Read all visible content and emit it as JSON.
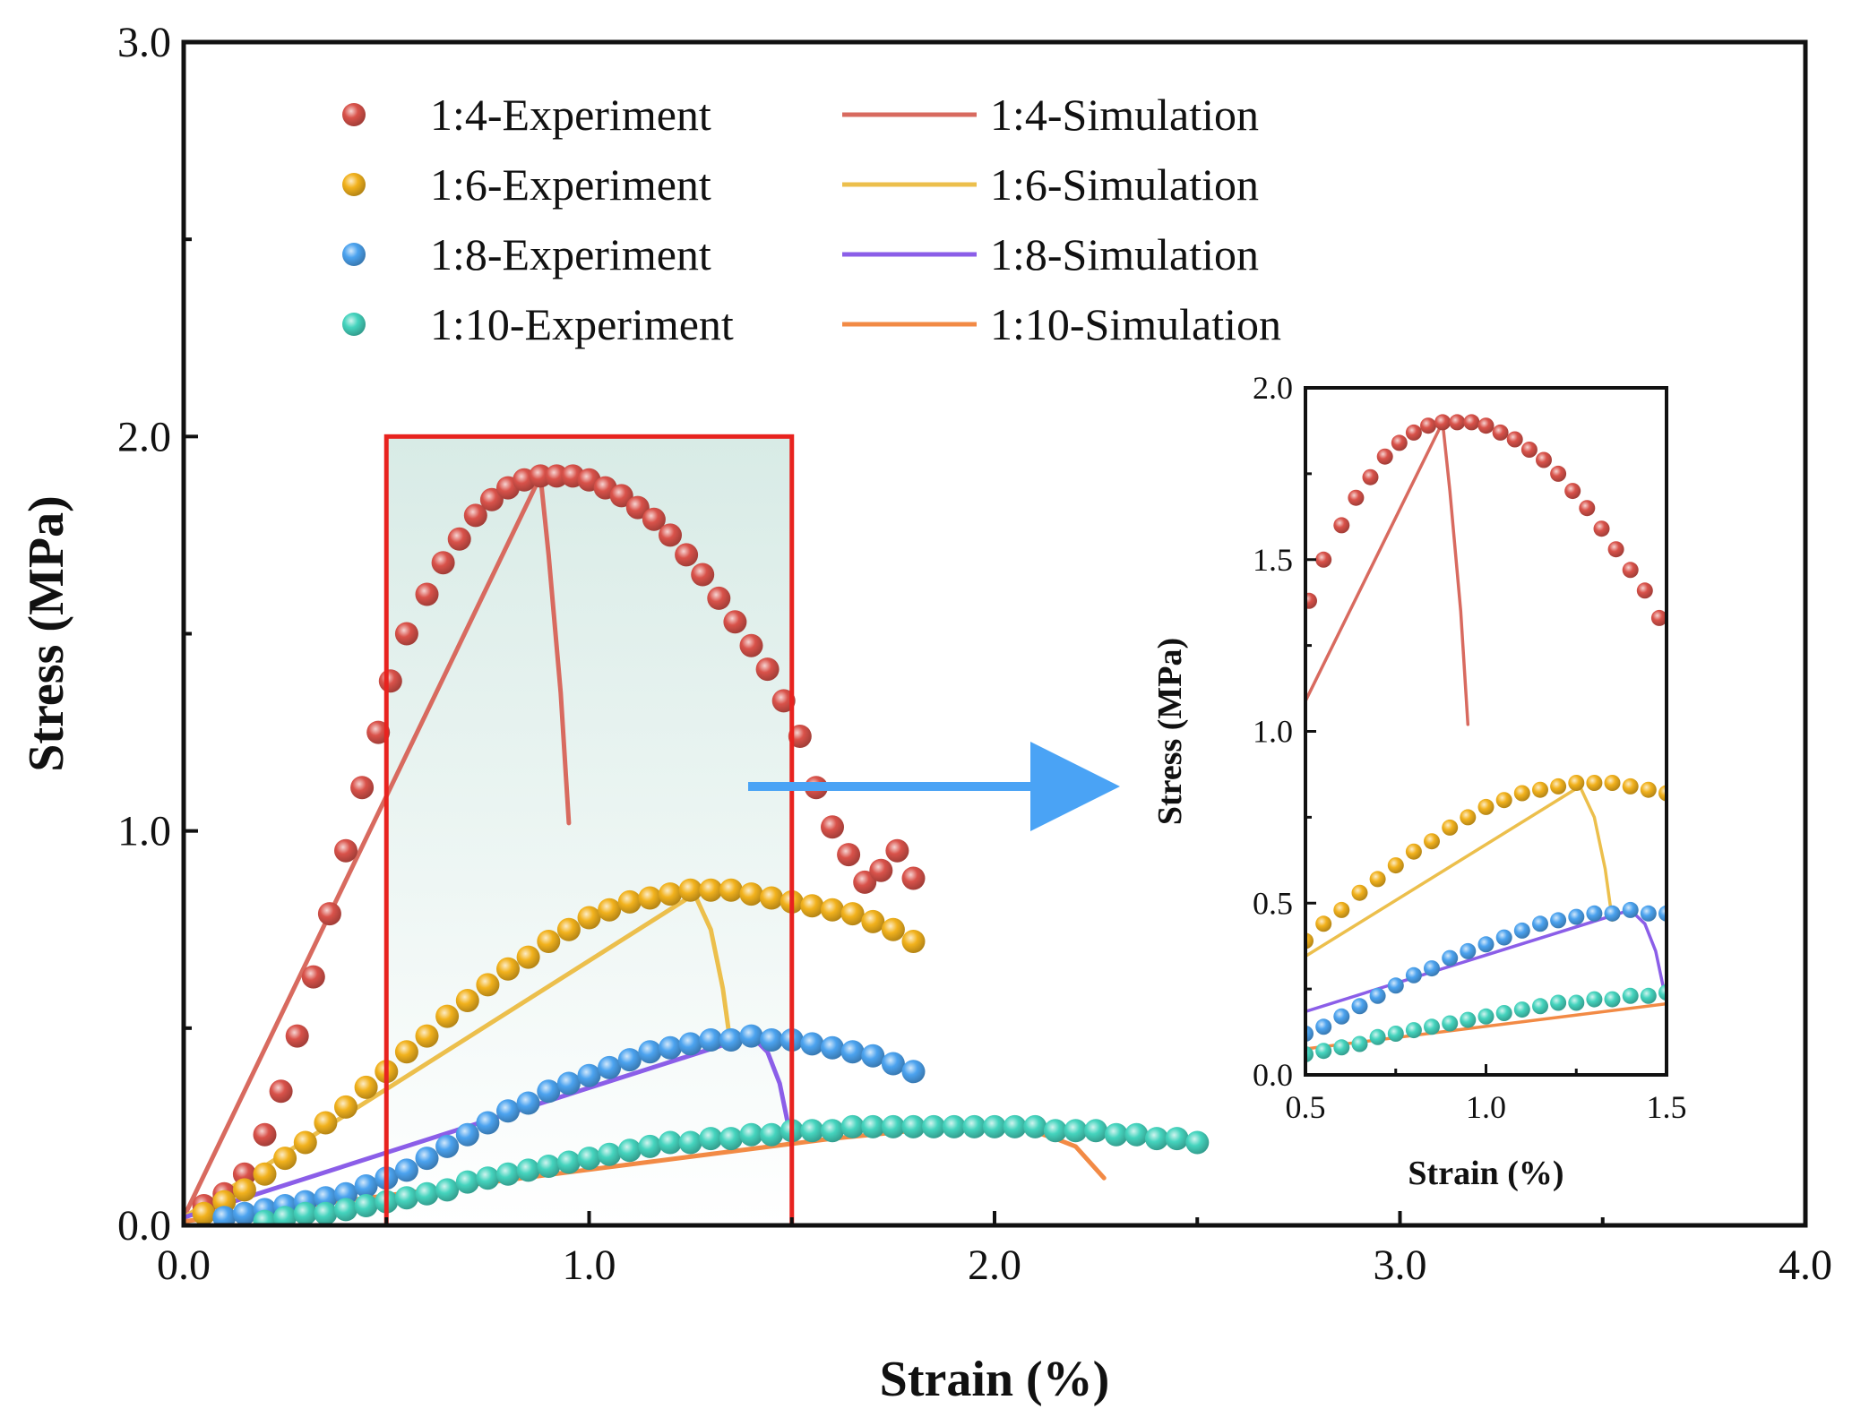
{
  "chart_data": [
    {
      "type": "scatter+line",
      "role": "main",
      "title": "",
      "xlabel": "Strain (%)",
      "ylabel": "Stress (MPa)",
      "xlim": [
        0,
        4
      ],
      "ylim": [
        0,
        3
      ],
      "xticks": [
        "0.0",
        "1.0",
        "2.0",
        "3.0",
        "4.0"
      ],
      "yticks": [
        "0.0",
        "1.0",
        "2.0",
        "3.0"
      ],
      "legend_position": "top-left",
      "highlight_region": {
        "x": [
          0.5,
          1.5
        ],
        "y": [
          0,
          2.0
        ],
        "color": "#e8231f"
      },
      "arrow_color": "#4aa3f5",
      "series": [
        {
          "name": "1:4-Experiment",
          "kind": "experiment",
          "color": "#d9524a",
          "x": [
            0.05,
            0.1,
            0.15,
            0.2,
            0.24,
            0.28,
            0.32,
            0.36,
            0.4,
            0.44,
            0.48,
            0.51,
            0.55,
            0.6,
            0.64,
            0.68,
            0.72,
            0.76,
            0.8,
            0.84,
            0.88,
            0.92,
            0.96,
            1.0,
            1.04,
            1.08,
            1.12,
            1.16,
            1.2,
            1.24,
            1.28,
            1.32,
            1.36,
            1.4,
            1.44,
            1.48,
            1.52,
            1.56,
            1.6,
            1.64,
            1.68,
            1.72,
            1.76,
            1.8
          ],
          "y": [
            0.05,
            0.08,
            0.13,
            0.23,
            0.34,
            0.48,
            0.63,
            0.79,
            0.95,
            1.11,
            1.25,
            1.38,
            1.5,
            1.6,
            1.68,
            1.74,
            1.8,
            1.84,
            1.87,
            1.89,
            1.9,
            1.9,
            1.9,
            1.89,
            1.87,
            1.85,
            1.82,
            1.79,
            1.75,
            1.7,
            1.65,
            1.59,
            1.53,
            1.47,
            1.41,
            1.33,
            1.24,
            1.11,
            1.01,
            0.94,
            0.87,
            0.9,
            0.95,
            0.88
          ]
        },
        {
          "name": "1:4-Simulation",
          "kind": "simulation",
          "color": "#d86a5f",
          "x": [
            0.0,
            0.88,
            0.9,
            0.93,
            0.95
          ],
          "y": [
            0.02,
            1.9,
            1.7,
            1.35,
            1.02
          ]
        },
        {
          "name": "1:6-Experiment",
          "kind": "experiment",
          "color": "#f2b21d",
          "x": [
            0.05,
            0.1,
            0.15,
            0.2,
            0.25,
            0.3,
            0.35,
            0.4,
            0.45,
            0.5,
            0.55,
            0.6,
            0.65,
            0.7,
            0.75,
            0.8,
            0.85,
            0.9,
            0.95,
            1.0,
            1.05,
            1.1,
            1.15,
            1.2,
            1.25,
            1.3,
            1.35,
            1.4,
            1.45,
            1.5,
            1.55,
            1.6,
            1.65,
            1.7,
            1.75,
            1.8
          ],
          "y": [
            0.03,
            0.06,
            0.09,
            0.13,
            0.17,
            0.21,
            0.26,
            0.3,
            0.35,
            0.39,
            0.44,
            0.48,
            0.53,
            0.57,
            0.61,
            0.65,
            0.68,
            0.72,
            0.75,
            0.78,
            0.8,
            0.82,
            0.83,
            0.84,
            0.85,
            0.85,
            0.85,
            0.84,
            0.83,
            0.82,
            0.81,
            0.8,
            0.79,
            0.77,
            0.75,
            0.72
          ]
        },
        {
          "name": "1:6-Simulation",
          "kind": "simulation",
          "color": "#ecbf4c",
          "x": [
            0.0,
            1.26,
            1.3,
            1.33,
            1.35
          ],
          "y": [
            0.02,
            0.84,
            0.75,
            0.6,
            0.45
          ]
        },
        {
          "name": "1:8-Experiment",
          "kind": "experiment",
          "color": "#4ca3ef",
          "x": [
            0.1,
            0.15,
            0.2,
            0.25,
            0.3,
            0.35,
            0.4,
            0.45,
            0.5,
            0.55,
            0.6,
            0.65,
            0.7,
            0.75,
            0.8,
            0.85,
            0.9,
            0.95,
            1.0,
            1.05,
            1.1,
            1.15,
            1.2,
            1.25,
            1.3,
            1.35,
            1.4,
            1.45,
            1.5,
            1.55,
            1.6,
            1.65,
            1.7,
            1.75,
            1.8
          ],
          "y": [
            0.02,
            0.03,
            0.04,
            0.05,
            0.06,
            0.07,
            0.08,
            0.1,
            0.12,
            0.14,
            0.17,
            0.2,
            0.23,
            0.26,
            0.29,
            0.31,
            0.34,
            0.36,
            0.38,
            0.4,
            0.42,
            0.44,
            0.45,
            0.46,
            0.47,
            0.47,
            0.48,
            0.47,
            0.47,
            0.46,
            0.45,
            0.44,
            0.43,
            0.41,
            0.39
          ]
        },
        {
          "name": "1:8-Simulation",
          "kind": "simulation",
          "color": "#8b5ee8",
          "x": [
            0.0,
            1.4,
            1.44,
            1.47,
            1.49
          ],
          "y": [
            0.02,
            0.48,
            0.44,
            0.36,
            0.26
          ]
        },
        {
          "name": "1:10-Experiment",
          "kind": "experiment",
          "color": "#45d4be",
          "x": [
            0.2,
            0.25,
            0.3,
            0.35,
            0.4,
            0.45,
            0.5,
            0.55,
            0.6,
            0.65,
            0.7,
            0.75,
            0.8,
            0.85,
            0.9,
            0.95,
            1.0,
            1.05,
            1.1,
            1.15,
            1.2,
            1.25,
            1.3,
            1.35,
            1.4,
            1.45,
            1.5,
            1.55,
            1.6,
            1.65,
            1.7,
            1.75,
            1.8,
            1.85,
            1.9,
            1.95,
            2.0,
            2.05,
            2.1,
            2.15,
            2.2,
            2.25,
            2.3,
            2.35,
            2.4,
            2.45,
            2.5
          ],
          "y": [
            0.01,
            0.02,
            0.03,
            0.03,
            0.04,
            0.05,
            0.06,
            0.07,
            0.08,
            0.09,
            0.11,
            0.12,
            0.13,
            0.14,
            0.15,
            0.16,
            0.17,
            0.18,
            0.19,
            0.2,
            0.21,
            0.21,
            0.22,
            0.22,
            0.23,
            0.23,
            0.24,
            0.24,
            0.24,
            0.25,
            0.25,
            0.25,
            0.25,
            0.25,
            0.25,
            0.25,
            0.25,
            0.25,
            0.25,
            0.24,
            0.24,
            0.24,
            0.23,
            0.23,
            0.22,
            0.22,
            0.21
          ]
        },
        {
          "name": "1:10-Simulation",
          "kind": "simulation",
          "color": "#f28a45",
          "x": [
            0.0,
            1.6,
            2.0,
            2.06,
            2.15,
            2.2,
            2.27
          ],
          "y": [
            0.01,
            0.22,
            0.26,
            0.25,
            0.22,
            0.2,
            0.12
          ]
        }
      ]
    },
    {
      "type": "scatter+line",
      "role": "inset",
      "title": "",
      "xlabel": "Strain (%)",
      "ylabel": "Stress (MPa)",
      "xlim": [
        0.5,
        1.5
      ],
      "ylim": [
        0,
        2.0
      ],
      "xticks": [
        "0.5",
        "1.0",
        "1.5"
      ],
      "yticks": [
        "0.0",
        "0.5",
        "1.0",
        "1.5",
        "2.0"
      ],
      "source": "zoom of main chart region x 0.5–1.5"
    }
  ]
}
